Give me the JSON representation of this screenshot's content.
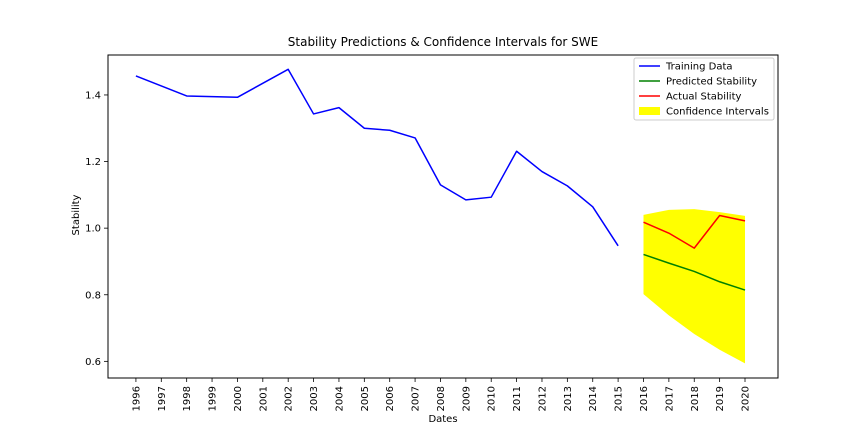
{
  "chart_data": {
    "type": "line",
    "title": "Stability Predictions & Confidence Intervals for SWE",
    "xlabel": "Dates",
    "ylabel": "Stability",
    "x_ticks": [
      "1996",
      "1997",
      "1998",
      "1999",
      "2000",
      "2001",
      "2002",
      "2003",
      "2004",
      "2005",
      "2006",
      "2007",
      "2008",
      "2009",
      "2010",
      "2011",
      "2012",
      "2013",
      "2014",
      "2015",
      "2016",
      "2017",
      "2018",
      "2019",
      "2020"
    ],
    "y_ticks": [
      0.6,
      0.8,
      1.0,
      1.2,
      1.4
    ],
    "y_tick_labels": [
      "0.6",
      "0.8",
      "1.0",
      "1.2",
      "1.4"
    ],
    "ylim": [
      0.55,
      1.52
    ],
    "xlim": [
      1994.9,
      2021.3
    ],
    "grid": false,
    "legend_position": "upper-right",
    "series": [
      {
        "name": "Training Data",
        "color": "#0000ff",
        "x": [
          1996,
          1998,
          2000,
          2002,
          2003,
          2004,
          2005,
          2006,
          2007,
          2008,
          2009,
          2010,
          2011,
          2012,
          2013,
          2014,
          2015
        ],
        "y": [
          1.457,
          1.397,
          1.393,
          1.477,
          1.343,
          1.362,
          1.3,
          1.294,
          1.271,
          1.13,
          1.085,
          1.093,
          1.231,
          1.17,
          1.127,
          1.064,
          0.947
        ]
      },
      {
        "name": "Predicted Stability",
        "color": "#008000",
        "x": [
          2016,
          2017,
          2018,
          2019,
          2020
        ],
        "y": [
          0.921,
          0.895,
          0.87,
          0.839,
          0.814
        ]
      },
      {
        "name": "Actual Stability",
        "color": "#ff0000",
        "x": [
          2016,
          2017,
          2018,
          2019,
          2020
        ],
        "y": [
          1.018,
          0.985,
          0.94,
          1.038,
          1.022
        ]
      }
    ],
    "confidence_interval": {
      "name": "Confidence Intervals",
      "color": "#ffff00",
      "x": [
        2016,
        2017,
        2018,
        2019,
        2020
      ],
      "lower": [
        0.802,
        0.738,
        0.682,
        0.635,
        0.594
      ],
      "upper": [
        1.04,
        1.055,
        1.057,
        1.048,
        1.037
      ]
    }
  }
}
